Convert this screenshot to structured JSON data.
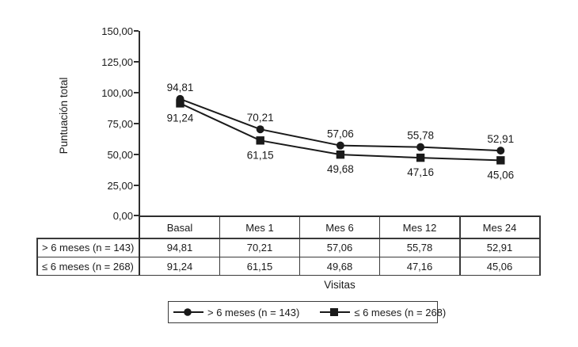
{
  "chart_data": {
    "type": "line",
    "title": "",
    "xlabel": "Visitas",
    "ylabel": "Puntuación total",
    "categories": [
      "Basal",
      "Mes 1",
      "Mes 6",
      "Mes 12",
      "Mes 24"
    ],
    "series": [
      {
        "name": "> 6 meses (n = 143)",
        "marker": "circle",
        "values": [
          94.81,
          70.21,
          57.06,
          55.78,
          52.91
        ],
        "point_labels": [
          "94,81",
          "70,21",
          "57,06",
          "55,78",
          "52,91"
        ],
        "label_position": "above"
      },
      {
        "name": "≤ 6 meses (n = 268)",
        "marker": "square",
        "values": [
          91.24,
          61.15,
          49.68,
          47.16,
          45.06
        ],
        "point_labels": [
          "91,24",
          "61,15",
          "49,68",
          "47,16",
          "45,06"
        ],
        "label_position": "below"
      }
    ],
    "y_axis": {
      "min": 0,
      "max": 150,
      "step": 25,
      "tick_labels": [
        "150,00",
        "125,00",
        "100,00",
        "75,00",
        "50,00",
        "25,00",
        "0,00"
      ]
    },
    "grid": false,
    "legend_position": "bottom",
    "colors": {
      "line": "#1a1a1a",
      "text": "#1a1a1a",
      "border": "#3a3a3a",
      "background": "#ffffff"
    }
  },
  "table": {
    "columns": [
      "Basal",
      "Mes 1",
      "Mes 6",
      "Mes 12",
      "Mes 24"
    ],
    "rows": [
      {
        "label": "> 6 meses (n = 143)",
        "values": [
          "94,81",
          "70,21",
          "57,06",
          "55,78",
          "52,91"
        ]
      },
      {
        "label": "≤ 6 meses (n = 268)",
        "values": [
          "91,24",
          "61,15",
          "49,68",
          "47,16",
          "45,06"
        ]
      }
    ]
  },
  "legend": {
    "items": [
      {
        "label": "> 6 meses (n = 143)",
        "marker": "circle"
      },
      {
        "label": "≤ 6 meses (n = 268)",
        "marker": "square"
      }
    ]
  }
}
